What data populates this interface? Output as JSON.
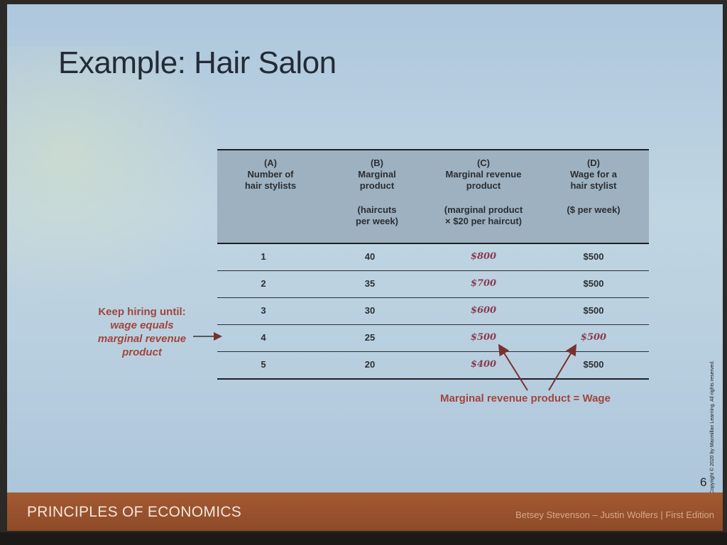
{
  "slide": {
    "title": "Example: Hair Salon",
    "page_number": "6",
    "copyright": "Copyright © 2020 by Macmillan Learning. All rights reserved.",
    "footer_left": "PRINCIPLES OF ECONOMICS",
    "footer_right": "Betsey Stevenson – Justin Wolfers | First Edition"
  },
  "table": {
    "headers": [
      {
        "letter": "(A)",
        "lines": [
          "Number of",
          "hair stylists"
        ],
        "sub": ""
      },
      {
        "letter": "(B)",
        "lines": [
          "Marginal",
          "product"
        ],
        "sub": [
          "(haircuts",
          "per week)"
        ]
      },
      {
        "letter": "(C)",
        "lines": [
          "Marginal revenue",
          "product"
        ],
        "sub": [
          "(marginal product",
          "× $20 per haircut)"
        ]
      },
      {
        "letter": "(D)",
        "lines": [
          "Wage for a",
          "hair stylist"
        ],
        "sub": [
          "($ per week)",
          ""
        ]
      }
    ],
    "rows": [
      {
        "stylists": "1",
        "mp": "40",
        "mrp": "$800",
        "wage": "$500"
      },
      {
        "stylists": "2",
        "mp": "35",
        "mrp": "$700",
        "wage": "$500"
      },
      {
        "stylists": "3",
        "mp": "30",
        "mrp": "$600",
        "wage": "$500"
      },
      {
        "stylists": "4",
        "mp": "25",
        "mrp": "$500",
        "wage": "$500"
      },
      {
        "stylists": "5",
        "mp": "20",
        "mrp": "$400",
        "wage": "$500"
      }
    ]
  },
  "annotations": {
    "left_line1": "Keep hiring until:",
    "left_line2": "wage equals",
    "left_line3": "marginal revenue",
    "left_line4": "product",
    "bottom": "Marginal revenue product = Wage"
  },
  "colors": {
    "accent_red": "#a2453c",
    "mrp_text": "#8a3a52",
    "footer": "#a45a32"
  }
}
